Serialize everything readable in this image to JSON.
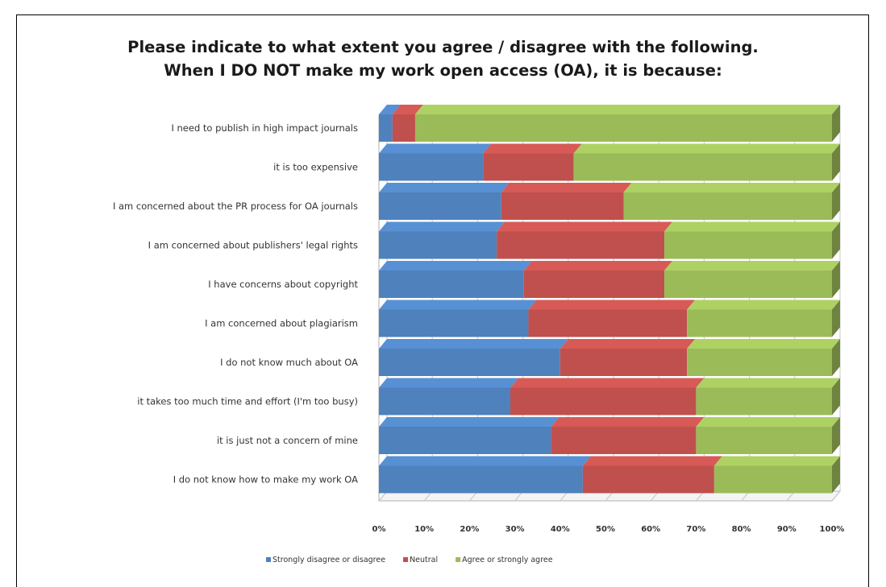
{
  "chart_data": {
    "type": "bar",
    "orientation": "horizontal",
    "stacked": "percent",
    "style": "3d",
    "title": "Please indicate to what extent you agree / disagree with the following.",
    "subtitle": "When I DO NOT make my work open access (OA), it is because:",
    "categories": [
      "I need to publish in high impact journals",
      "it is too expensive",
      "I am concerned about the PR process for OA journals",
      "I am concerned about publishers' legal rights",
      "I have concerns about copyright",
      "I am concerned about plagiarism",
      "I do not know much about OA",
      "it takes too much time and effort (I'm too busy)",
      "it is just not a concern of mine",
      "I do not know how to make my work OA"
    ],
    "series": [
      {
        "name": "Strongly disagree or disagree",
        "color": "#4F81BD",
        "values": [
          3,
          23,
          27,
          26,
          32,
          33,
          40,
          29,
          38,
          45
        ]
      },
      {
        "name": "Neutral",
        "color": "#C0504D",
        "values": [
          5,
          20,
          27,
          37,
          31,
          35,
          28,
          41,
          32,
          29
        ]
      },
      {
        "name": "Agree or strongly agree",
        "color": "#9BBB59",
        "values": [
          92,
          57,
          46,
          37,
          37,
          32,
          32,
          30,
          30,
          26
        ]
      }
    ],
    "xticks": [
      "0%",
      "10%",
      "20%",
      "30%",
      "40%",
      "50%",
      "60%",
      "70%",
      "80%",
      "90%",
      "100%"
    ],
    "xlim": [
      0,
      100
    ],
    "grid": true,
    "legend_position": "bottom"
  }
}
